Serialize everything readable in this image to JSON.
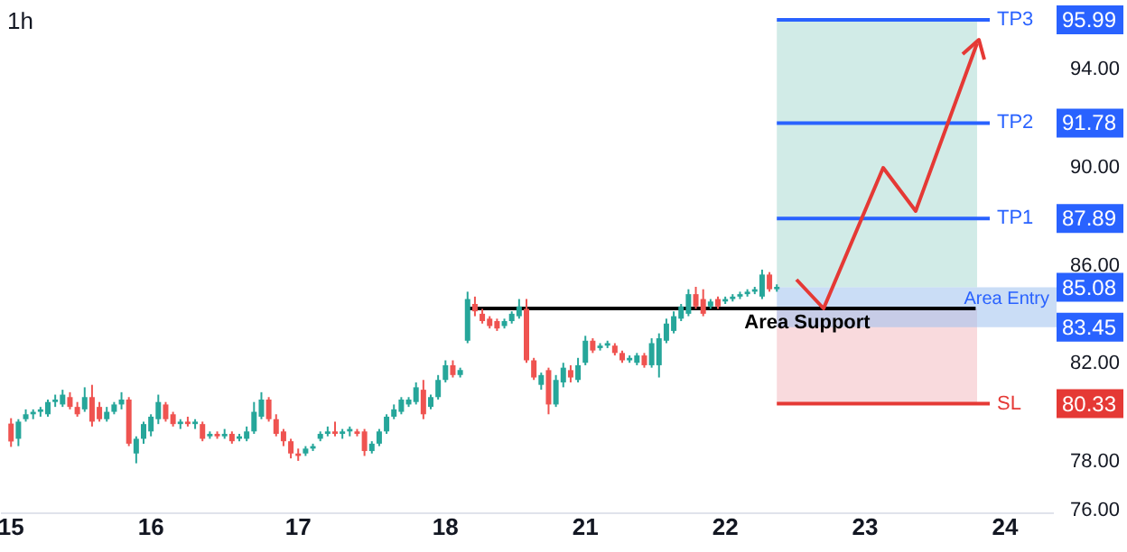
{
  "chart_data": {
    "type": "candlestick",
    "title": "1h",
    "categories": [
      "15",
      null,
      null,
      null,
      null,
      null,
      null,
      null,
      null,
      null,
      null,
      null,
      null,
      null,
      null,
      null,
      null,
      null,
      null,
      "16",
      null,
      null,
      null,
      null,
      null,
      null,
      null,
      null,
      null,
      null,
      null,
      null,
      null,
      null,
      null,
      null,
      null,
      null,
      null,
      "17",
      null,
      null,
      null,
      null,
      null,
      null,
      null,
      null,
      null,
      null,
      null,
      null,
      null,
      null,
      null,
      null,
      null,
      null,
      null,
      "18",
      null,
      null,
      null,
      null,
      null,
      null,
      null,
      null,
      null,
      null,
      null,
      null,
      null,
      null,
      null,
      null,
      null,
      null,
      "21",
      null,
      null,
      null,
      null,
      null,
      null,
      null,
      null,
      null,
      null,
      null,
      null,
      null,
      null,
      null,
      null,
      null,
      null,
      "22",
      null,
      null,
      null,
      null,
      null,
      null,
      null,
      null,
      null,
      null,
      null,
      null,
      null,
      null,
      null,
      null,
      null,
      null,
      "23",
      null,
      null,
      null,
      null,
      null,
      null,
      null,
      null,
      null,
      null,
      null,
      null,
      null,
      null,
      null,
      null,
      null,
      null,
      "24",
      null,
      null,
      null,
      null,
      null
    ],
    "ohlc": [
      [
        79.52,
        79.74,
        78.57,
        78.79
      ],
      [
        78.9,
        79.7,
        78.6,
        79.6
      ],
      [
        79.7,
        80.1,
        79.6,
        79.9
      ],
      [
        79.9,
        80.1,
        79.7,
        80.0
      ],
      [
        80.0,
        80.2,
        79.8,
        80.1
      ],
      [
        79.9,
        80.5,
        79.8,
        80.4
      ],
      [
        80.4,
        80.7,
        80.2,
        80.5
      ],
      [
        80.3,
        80.9,
        80.2,
        80.7
      ],
      [
        80.6,
        80.8,
        80.1,
        80.2
      ],
      [
        80.2,
        80.4,
        79.8,
        79.9
      ],
      [
        80.1,
        81.0,
        80.0,
        80.6
      ],
      [
        80.6,
        81.1,
        79.4,
        79.6
      ],
      [
        80.2,
        80.4,
        79.6,
        79.7
      ],
      [
        79.7,
        80.2,
        79.6,
        80.0
      ],
      [
        80.0,
        80.4,
        79.9,
        80.3
      ],
      [
        80.3,
        80.8,
        80.1,
        80.5
      ],
      [
        80.5,
        80.6,
        78.6,
        78.7
      ],
      [
        78.3,
        79.0,
        77.9,
        78.9
      ],
      [
        78.9,
        79.6,
        78.7,
        79.5
      ],
      [
        79.2,
        79.9,
        79.0,
        79.8
      ],
      [
        79.7,
        80.7,
        79.5,
        80.4
      ],
      [
        80.3,
        80.4,
        79.6,
        79.7
      ],
      [
        79.9,
        80.0,
        79.4,
        79.5
      ],
      [
        79.5,
        79.7,
        79.3,
        79.6
      ],
      [
        79.6,
        79.8,
        79.4,
        79.5
      ],
      [
        79.5,
        79.7,
        79.3,
        79.6
      ],
      [
        79.5,
        79.6,
        78.8,
        78.9
      ],
      [
        79.0,
        79.2,
        78.9,
        79.1
      ],
      [
        79.1,
        79.2,
        78.9,
        79.0
      ],
      [
        79.0,
        79.3,
        78.9,
        79.1
      ],
      [
        79.1,
        79.2,
        78.7,
        78.8
      ],
      [
        78.9,
        79.1,
        78.8,
        79.0
      ],
      [
        78.9,
        79.4,
        78.8,
        79.2
      ],
      [
        79.2,
        80.4,
        79.1,
        80.0
      ],
      [
        79.8,
        80.8,
        79.7,
        80.5
      ],
      [
        80.5,
        80.6,
        79.6,
        79.7
      ],
      [
        79.7,
        79.9,
        79.0,
        79.1
      ],
      [
        79.2,
        79.3,
        78.6,
        78.8
      ],
      [
        78.8,
        78.9,
        78.1,
        78.3
      ],
      [
        78.3,
        78.5,
        78.0,
        78.2
      ],
      [
        78.3,
        78.6,
        78.2,
        78.5
      ],
      [
        78.5,
        78.7,
        78.4,
        78.6
      ],
      [
        78.9,
        79.2,
        78.8,
        79.1
      ],
      [
        79.1,
        79.4,
        79.0,
        79.2
      ],
      [
        79.2,
        79.6,
        79.0,
        79.1
      ],
      [
        79.1,
        79.3,
        78.9,
        79.2
      ],
      [
        79.2,
        79.4,
        79.0,
        79.3
      ],
      [
        79.2,
        79.3,
        79.0,
        79.1
      ],
      [
        79.2,
        79.3,
        78.2,
        78.4
      ],
      [
        78.4,
        78.8,
        78.3,
        78.7
      ],
      [
        78.7,
        79.3,
        78.6,
        79.2
      ],
      [
        79.2,
        79.9,
        79.1,
        79.8
      ],
      [
        79.8,
        80.3,
        79.7,
        80.1
      ],
      [
        80.0,
        80.6,
        79.9,
        80.5
      ],
      [
        80.3,
        80.6,
        80.2,
        80.5
      ],
      [
        80.4,
        81.2,
        80.3,
        81.0
      ],
      [
        80.9,
        81.3,
        79.7,
        79.9
      ],
      [
        80.2,
        80.7,
        80.1,
        80.6
      ],
      [
        80.6,
        81.5,
        80.5,
        81.3
      ],
      [
        81.3,
        82.1,
        81.2,
        81.9
      ],
      [
        81.9,
        82.1,
        81.4,
        81.5
      ],
      [
        81.5,
        81.8,
        81.4,
        81.7
      ],
      [
        82.9,
        84.9,
        82.8,
        84.6
      ],
      [
        84.4,
        84.7,
        83.9,
        84.1
      ],
      [
        84.0,
        84.2,
        83.6,
        83.7
      ],
      [
        83.8,
        83.9,
        83.4,
        83.5
      ],
      [
        83.7,
        83.8,
        83.3,
        83.4
      ],
      [
        83.5,
        83.8,
        83.4,
        83.7
      ],
      [
        83.7,
        84.1,
        83.6,
        84.0
      ],
      [
        83.9,
        84.6,
        83.8,
        84.3
      ],
      [
        84.2,
        84.6,
        82.0,
        82.1
      ],
      [
        82.1,
        82.2,
        81.3,
        81.4
      ],
      [
        81.1,
        81.6,
        80.9,
        81.5
      ],
      [
        81.7,
        81.8,
        79.9,
        80.3
      ],
      [
        80.3,
        81.5,
        80.2,
        81.3
      ],
      [
        81.2,
        82.0,
        81.0,
        81.8
      ],
      [
        81.7,
        81.9,
        81.2,
        81.4
      ],
      [
        81.3,
        82.2,
        81.2,
        81.9
      ],
      [
        82.0,
        83.1,
        81.9,
        82.9
      ],
      [
        82.9,
        83.0,
        82.4,
        82.5
      ],
      [
        82.6,
        82.8,
        82.5,
        82.7
      ],
      [
        82.7,
        82.9,
        82.6,
        82.8
      ],
      [
        82.7,
        82.8,
        82.3,
        82.4
      ],
      [
        82.4,
        82.5,
        82.0,
        82.1
      ],
      [
        82.1,
        82.3,
        82.0,
        82.2
      ],
      [
        82.0,
        82.4,
        81.9,
        82.3
      ],
      [
        82.3,
        82.4,
        81.8,
        81.9
      ],
      [
        81.9,
        83.0,
        81.8,
        82.8
      ],
      [
        81.9,
        83.2,
        81.4,
        83.0
      ],
      [
        82.9,
        83.8,
        82.8,
        83.6
      ],
      [
        83.3,
        84.1,
        83.2,
        83.9
      ],
      [
        83.8,
        84.4,
        83.7,
        84.3
      ],
      [
        84.0,
        85.0,
        83.9,
        84.8
      ],
      [
        84.8,
        85.1,
        84.2,
        84.3
      ],
      [
        84.6,
        85.0,
        83.9,
        84.0
      ],
      [
        84.3,
        84.6,
        84.2,
        84.5
      ],
      [
        84.6,
        84.7,
        84.2,
        84.3
      ],
      [
        84.5,
        84.7,
        84.4,
        84.6
      ],
      [
        84.6,
        84.8,
        84.5,
        84.7
      ],
      [
        84.7,
        84.9,
        84.6,
        84.8
      ],
      [
        84.8,
        85.0,
        84.7,
        84.9
      ],
      [
        84.9,
        85.1,
        84.8,
        85.0
      ],
      [
        84.7,
        85.8,
        84.6,
        85.6
      ],
      [
        85.6,
        85.7,
        84.9,
        85.0
      ],
      [
        85.0,
        85.2,
        84.9,
        85.1
      ],
      null,
      null,
      null,
      null,
      null,
      null,
      null,
      null,
      null,
      null,
      null,
      null,
      null,
      null,
      null,
      null,
      null,
      null,
      null,
      null,
      null,
      null,
      null,
      null,
      null,
      null,
      null,
      null,
      null,
      null,
      null,
      null,
      null,
      null,
      null,
      null
    ],
    "colors": [
      "#ef5350",
      "#26a69a",
      "#26a69a",
      "#26a69a",
      "#26a69a",
      "#26a69a",
      "#26a69a",
      "#26a69a",
      "#ef5350",
      "#ef5350",
      "#26a69a",
      "#ef5350",
      "#ef5350",
      "#26a69a",
      "#26a69a",
      "#26a69a",
      "#ef5350",
      "#26a69a",
      "#26a69a",
      "#26a69a",
      "#26a69a",
      "#ef5350",
      "#ef5350",
      "#26a69a",
      "#ef5350",
      "#26a69a",
      "#ef5350",
      "#26a69a",
      "#ef5350",
      "#26a69a",
      "#ef5350",
      "#26a69a",
      "#26a69a",
      "#26a69a",
      "#26a69a",
      "#ef5350",
      "#ef5350",
      "#ef5350",
      "#ef5350",
      "#ef5350",
      "#26a69a",
      "#26a69a",
      "#26a69a",
      "#26a69a",
      "#ef5350",
      "#26a69a",
      "#26a69a",
      "#ef5350",
      "#ef5350",
      "#26a69a",
      "#26a69a",
      "#26a69a",
      "#26a69a",
      "#26a69a",
      "#26a69a",
      "#26a69a",
      "#ef5350",
      "#26a69a",
      "#26a69a",
      "#26a69a",
      "#ef5350",
      "#26a69a",
      "#26a69a",
      "#ef5350",
      "#ef5350",
      "#ef5350",
      "#ef5350",
      "#26a69a",
      "#26a69a",
      "#26a69a",
      "#ef5350",
      "#ef5350",
      "#26a69a",
      "#ef5350",
      "#26a69a",
      "#26a69a",
      "#ef5350",
      "#26a69a",
      "#26a69a",
      "#ef5350",
      "#26a69a",
      "#26a69a",
      "#ef5350",
      "#ef5350",
      "#26a69a",
      "#26a69a",
      "#ef5350",
      "#26a69a",
      "#26a69a",
      "#26a69a",
      "#26a69a",
      "#26a69a",
      "#26a69a",
      "#ef5350",
      "#ef5350",
      "#26a69a",
      "#ef5350",
      "#26a69a",
      "#26a69a",
      "#26a69a",
      "#26a69a",
      "#26a69a",
      "#26a69a",
      "#ef5350",
      "#26a69a",
      null,
      null,
      null,
      null,
      null,
      null,
      null,
      null,
      null,
      null,
      null,
      null,
      null,
      null,
      null,
      null,
      null,
      null,
      null,
      null,
      null,
      null,
      null,
      null,
      null,
      null,
      null,
      null,
      null,
      null,
      null,
      null,
      null,
      null,
      null,
      null
    ],
    "series": [
      {
        "type": "line",
        "name": "Area Support",
        "color": "#000000",
        "values": [
          null,
          null,
          null,
          null,
          null,
          null,
          null,
          null,
          null,
          null,
          null,
          null,
          null,
          null,
          null,
          null,
          null,
          null,
          null,
          null,
          null,
          null,
          null,
          null,
          null,
          null,
          null,
          null,
          null,
          null,
          null,
          null,
          null,
          null,
          null,
          null,
          null,
          null,
          null,
          null,
          null,
          null,
          null,
          null,
          null,
          null,
          null,
          null,
          null,
          null,
          null,
          null,
          null,
          null,
          null,
          null,
          null,
          null,
          null,
          null,
          null,
          null,
          84.22,
          84.22,
          84.22,
          84.22,
          84.22,
          84.22,
          84.22,
          84.22,
          84.22,
          84.22,
          84.22,
          84.22,
          84.22,
          84.22,
          84.22,
          84.22,
          84.22,
          84.22,
          84.22,
          84.22,
          84.22,
          84.22,
          84.22,
          84.22,
          84.22,
          84.22,
          84.22,
          84.22,
          84.22,
          84.22,
          84.22,
          84.22,
          84.22,
          84.22,
          84.22,
          84.22,
          84.22,
          84.22,
          84.22,
          84.22,
          84.22,
          84.22,
          84.22,
          84.22,
          84.22,
          84.22,
          84.22,
          84.22,
          84.22,
          84.22,
          84.22,
          84.22,
          84.22,
          84.22,
          84.22,
          84.22,
          84.22,
          84.22,
          84.22,
          84.22,
          84.22,
          84.22,
          84.22,
          84.22,
          84.22,
          84.22,
          84.22,
          84.22,
          84.22,
          84.22,
          null,
          null,
          null,
          null,
          null,
          null,
          null,
          null,
          null
        ]
      }
    ],
    "annotations": [
      {
        "text": "95.99",
        "y": 95.99
      },
      {
        "text": "91.78",
        "y": 91.78
      },
      {
        "text": "87.89",
        "y": 87.89
      },
      {
        "text": "85.08",
        "y": 85.08
      },
      {
        "text": "83.45",
        "y": 83.45
      },
      {
        "text": "80.33",
        "y": 80.33
      }
    ],
    "ref_lines": [
      {
        "axis": "y",
        "value": 95.99,
        "label": "TP3",
        "color": "#2962ff"
      },
      {
        "axis": "y",
        "value": 91.78,
        "label": "TP2",
        "color": "#2962ff"
      },
      {
        "axis": "y",
        "value": 87.89,
        "label": "TP1",
        "color": "#2962ff"
      },
      {
        "axis": "y",
        "value": 80.33,
        "label": "SL",
        "color": "#e53935"
      }
    ],
    "bands": [
      {
        "axis": "y",
        "from": 85.08,
        "to": 95.99,
        "color": "#d1ebe7"
      },
      {
        "axis": "y",
        "from": 80.33,
        "to": 84.22,
        "color": "#f9dadd"
      },
      {
        "axis": "y",
        "from": 83.45,
        "to": 85.08,
        "label": "Area Entry",
        "color": "#9ec1ee"
      }
    ],
    "ylim": [
      75.9,
      96.8
    ],
    "yticks": [
      {
        "value": 76,
        "label": "76.00"
      },
      {
        "value": 78,
        "label": "78.00"
      },
      {
        "value": 82,
        "label": "82.00"
      },
      {
        "value": 86,
        "label": "86.00"
      },
      {
        "value": 90,
        "label": "90.00"
      },
      {
        "value": 94,
        "label": "94.00"
      }
    ],
    "grid": false
  }
}
